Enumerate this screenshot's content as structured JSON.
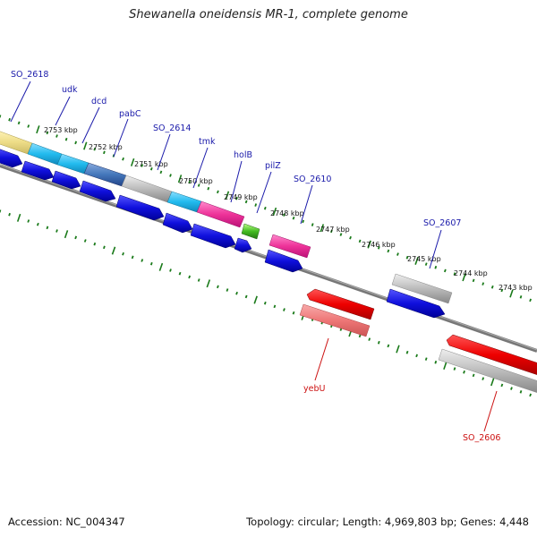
{
  "title": "Shewanella oneidensis MR-1, complete genome",
  "footer": {
    "accession": "Accession: NC_004347",
    "summary": "Topology: circular; Length: 4,969,803 bp; Genes: 4,448"
  },
  "ruler_labels": [
    "2753 kbp",
    "2752 kbp",
    "2751 kbp",
    "2750 kbp",
    "2749 kbp",
    "2748 kbp",
    "2747 kbp",
    "2746 kbp",
    "2745 kbp",
    "2744 kbp",
    "2743 kbp"
  ],
  "gene_labels_top": [
    "SO_2618",
    "udk",
    "dcd",
    "pabC",
    "SO_2614",
    "tmk",
    "holB",
    "pilZ",
    "SO_2610",
    "SO_2607"
  ],
  "gene_labels_bottom": [
    "yebU",
    "SO_2606"
  ],
  "colors": {
    "blue": "#1010dd",
    "red": "#ee0000",
    "pink": "#ee3399",
    "cyan": "#22bbee",
    "gray": "#bbbbbb",
    "yellow": "#eedd88",
    "green": "#44bb22",
    "tick": "#1a7a1a"
  }
}
